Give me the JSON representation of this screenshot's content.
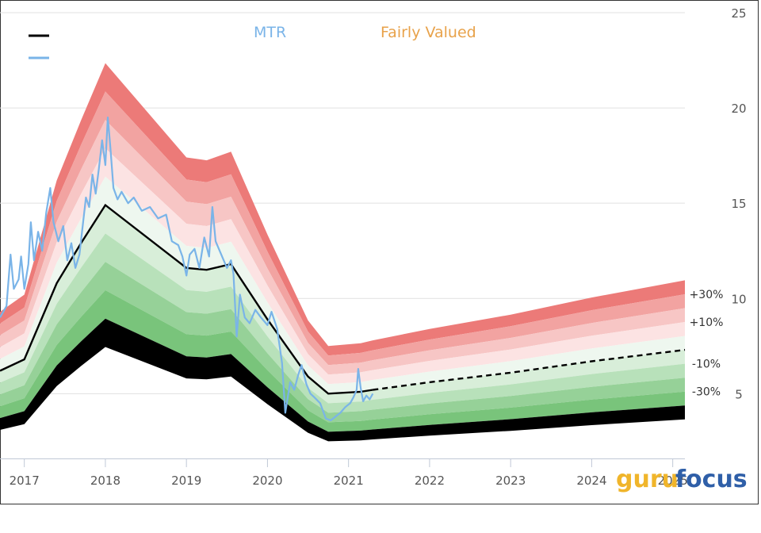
{
  "chart_data": {
    "type": "area",
    "title": "",
    "xlabel": "",
    "ylabel": "",
    "xlim": [
      2016.7,
      2025.15
    ],
    "ylim": [
      1.6,
      25
    ],
    "x_ticks": [
      "2017",
      "2018",
      "2019",
      "2020",
      "2021",
      "2022",
      "2023",
      "2024",
      "2025"
    ],
    "y_ticks": [
      "25",
      "20",
      "15",
      "10",
      "5"
    ],
    "legend": [
      {
        "name": "",
        "color": "#000000"
      },
      {
        "name": "",
        "color": "#7ab4e8"
      },
      {
        "name": "MTR",
        "color": "#7ab4e8"
      },
      {
        "name": "Fairly Valued",
        "color": "#e8a24a"
      }
    ],
    "band_labels": [
      "+30%",
      "+10%",
      "-10%",
      "-30%"
    ],
    "band_colors": [
      "#ec7a78",
      "#f2a3a1",
      "#f7c6c5",
      "#fce3e3",
      "#eef7ef",
      "#d8eed9",
      "#b8e1ba",
      "#96d198",
      "#79c47b"
    ],
    "band_multipliers": [
      1.5,
      1.4,
      1.3,
      1.2,
      1.1,
      1.0,
      0.9,
      0.8,
      0.7,
      0.6,
      0.5
    ],
    "fair_value_solid": [
      [
        2016.7,
        6.2
      ],
      [
        2017.0,
        6.8
      ],
      [
        2017.4,
        10.8
      ],
      [
        2017.7,
        12.9
      ],
      [
        2018.0,
        14.9
      ],
      [
        2019.0,
        11.6
      ],
      [
        2019.25,
        11.5
      ],
      [
        2019.55,
        11.8
      ],
      [
        2020.0,
        8.9
      ],
      [
        2020.5,
        5.9
      ],
      [
        2020.75,
        5.0
      ],
      [
        2021.15,
        5.1
      ],
      [
        2021.3,
        5.2
      ]
    ],
    "fair_value_projected": [
      [
        2021.3,
        5.2
      ],
      [
        2022.0,
        5.6
      ],
      [
        2023.0,
        6.1
      ],
      [
        2024.0,
        6.7
      ],
      [
        2025.15,
        7.3
      ]
    ],
    "price": [
      [
        2016.7,
        9.0
      ],
      [
        2016.78,
        9.6
      ],
      [
        2016.83,
        12.3
      ],
      [
        2016.87,
        10.5
      ],
      [
        2016.93,
        11.0
      ],
      [
        2016.96,
        12.2
      ],
      [
        2017.0,
        10.5
      ],
      [
        2017.05,
        11.8
      ],
      [
        2017.08,
        14.0
      ],
      [
        2017.12,
        12.0
      ],
      [
        2017.17,
        13.5
      ],
      [
        2017.22,
        12.5
      ],
      [
        2017.27,
        14.5
      ],
      [
        2017.32,
        15.8
      ],
      [
        2017.36,
        14.0
      ],
      [
        2017.42,
        13.0
      ],
      [
        2017.48,
        13.8
      ],
      [
        2017.53,
        12.0
      ],
      [
        2017.58,
        12.9
      ],
      [
        2017.63,
        11.6
      ],
      [
        2017.68,
        12.3
      ],
      [
        2017.72,
        13.8
      ],
      [
        2017.76,
        15.3
      ],
      [
        2017.8,
        14.8
      ],
      [
        2017.84,
        16.5
      ],
      [
        2017.88,
        15.5
      ],
      [
        2017.92,
        16.8
      ],
      [
        2017.96,
        18.3
      ],
      [
        2018.0,
        17.0
      ],
      [
        2018.03,
        19.5
      ],
      [
        2018.06,
        18.0
      ],
      [
        2018.1,
        15.8
      ],
      [
        2018.15,
        15.2
      ],
      [
        2018.2,
        15.6
      ],
      [
        2018.28,
        15.0
      ],
      [
        2018.35,
        15.3
      ],
      [
        2018.45,
        14.6
      ],
      [
        2018.55,
        14.8
      ],
      [
        2018.65,
        14.2
      ],
      [
        2018.75,
        14.4
      ],
      [
        2018.82,
        13.0
      ],
      [
        2018.9,
        12.8
      ],
      [
        2018.95,
        12.2
      ],
      [
        2019.0,
        11.2
      ],
      [
        2019.04,
        12.3
      ],
      [
        2019.1,
        12.6
      ],
      [
        2019.16,
        11.6
      ],
      [
        2019.22,
        13.2
      ],
      [
        2019.28,
        12.2
      ],
      [
        2019.32,
        14.8
      ],
      [
        2019.36,
        13.0
      ],
      [
        2019.42,
        12.4
      ],
      [
        2019.5,
        11.6
      ],
      [
        2019.55,
        12.0
      ],
      [
        2019.58,
        11.3
      ],
      [
        2019.62,
        8.0
      ],
      [
        2019.66,
        10.2
      ],
      [
        2019.72,
        9.0
      ],
      [
        2019.78,
        8.7
      ],
      [
        2019.85,
        9.4
      ],
      [
        2019.92,
        9.0
      ],
      [
        2020.0,
        8.6
      ],
      [
        2020.05,
        9.3
      ],
      [
        2020.12,
        8.4
      ],
      [
        2020.18,
        6.6
      ],
      [
        2020.22,
        4.0
      ],
      [
        2020.28,
        5.6
      ],
      [
        2020.33,
        5.2
      ],
      [
        2020.38,
        6.0
      ],
      [
        2020.42,
        6.5
      ],
      [
        2020.48,
        5.5
      ],
      [
        2020.53,
        5.0
      ],
      [
        2020.58,
        4.8
      ],
      [
        2020.65,
        4.5
      ],
      [
        2020.72,
        3.7
      ],
      [
        2020.78,
        3.6
      ],
      [
        2020.84,
        3.8
      ],
      [
        2020.9,
        4.0
      ],
      [
        2020.96,
        4.3
      ],
      [
        2021.02,
        4.5
      ],
      [
        2021.06,
        4.8
      ],
      [
        2021.1,
        5.2
      ],
      [
        2021.12,
        6.3
      ],
      [
        2021.15,
        5.3
      ],
      [
        2021.18,
        4.6
      ],
      [
        2021.22,
        4.9
      ],
      [
        2021.26,
        4.7
      ],
      [
        2021.3,
        5.0
      ]
    ]
  },
  "branding": {
    "guru": "guru",
    "focus": "focus"
  }
}
